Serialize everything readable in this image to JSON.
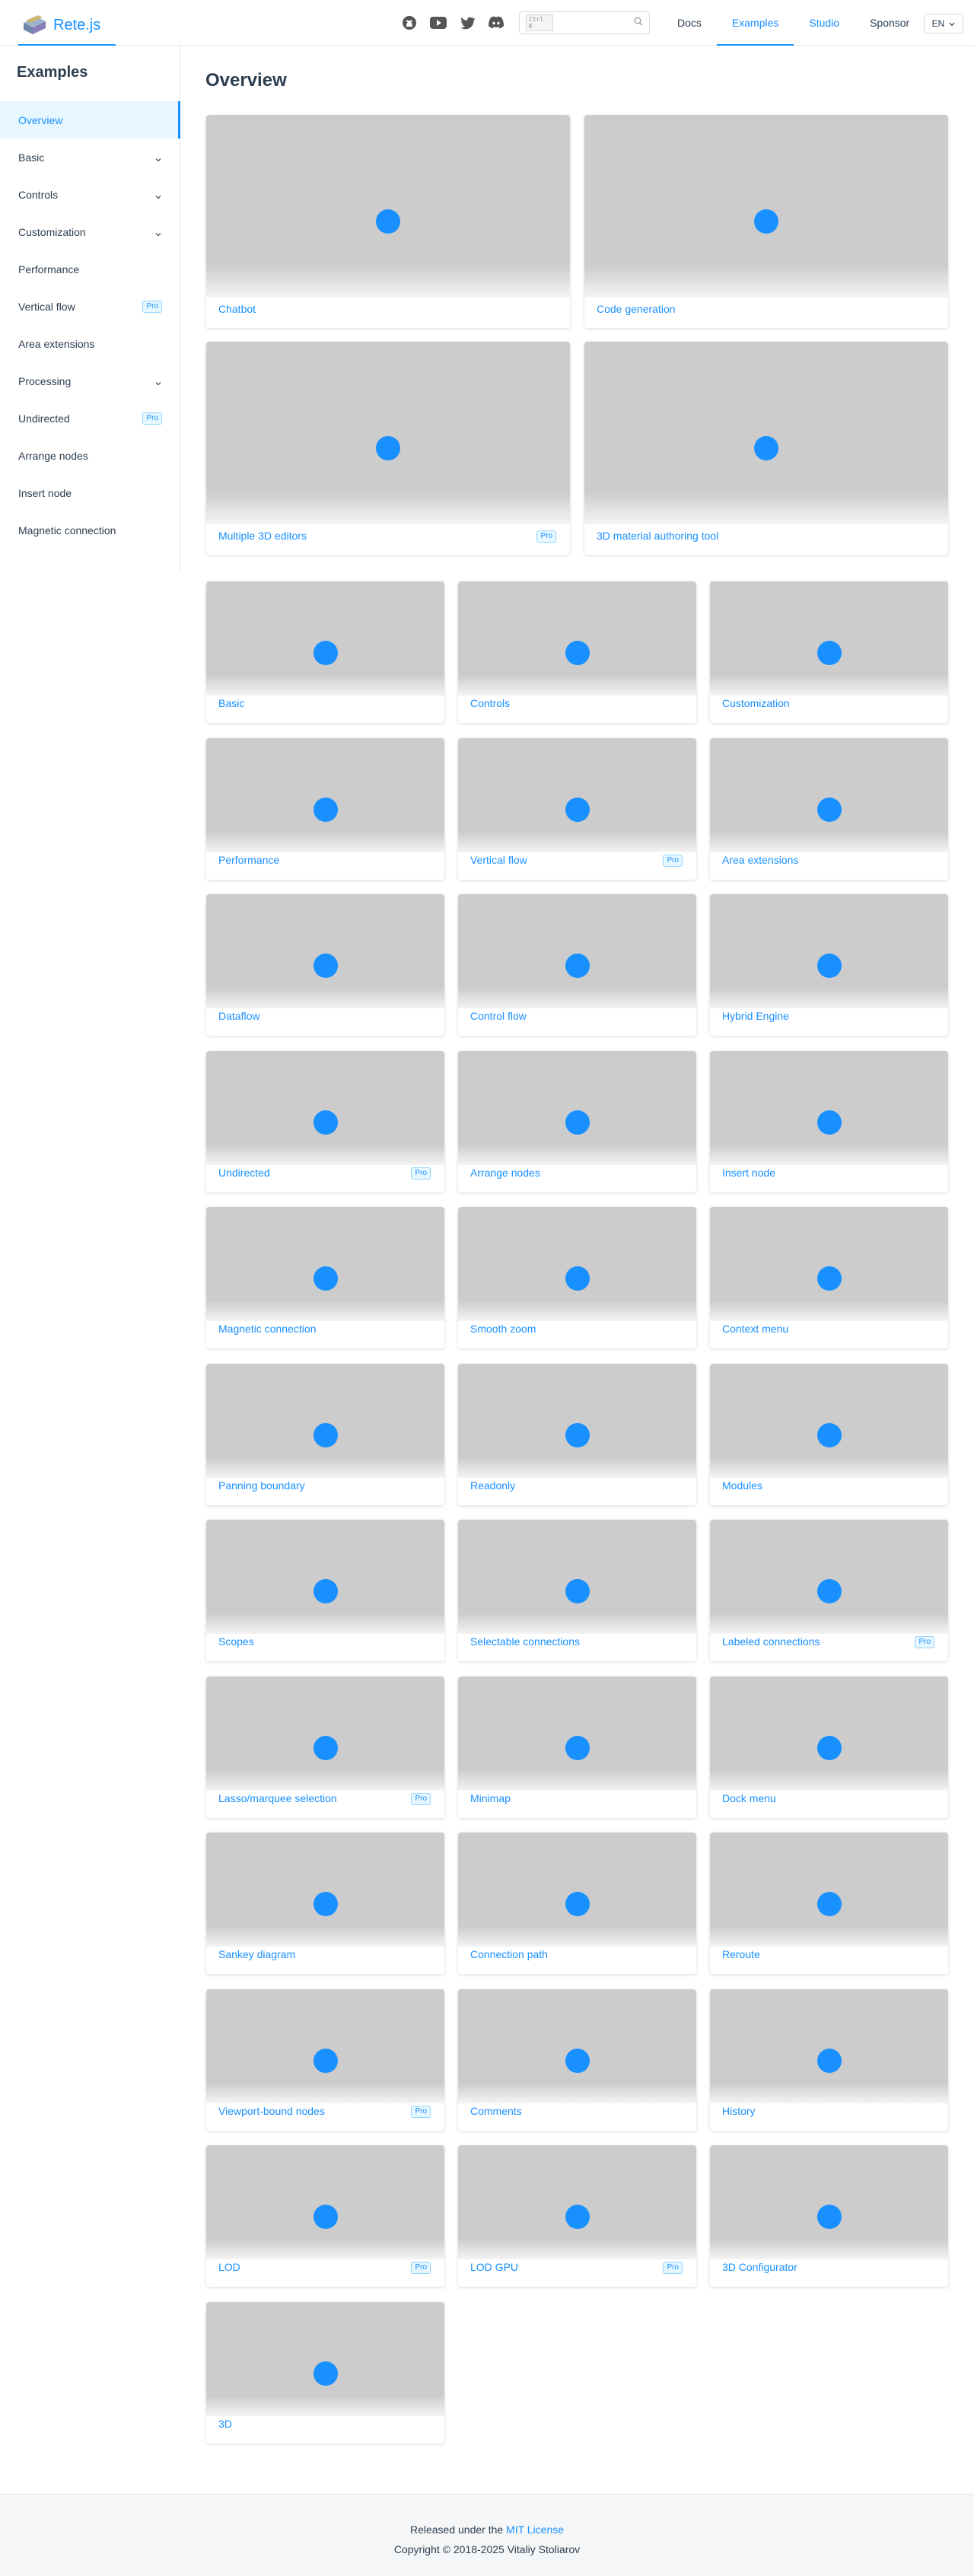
{
  "header": {
    "logo_text": "Rete.js",
    "social": [
      "github-icon",
      "youtube-icon",
      "twitter-icon",
      "discord-icon"
    ],
    "search": {
      "shortcut": "Ctrl K",
      "placeholder": ""
    },
    "nav": [
      {
        "label": "Docs",
        "state": "default"
      },
      {
        "label": "Examples",
        "state": "active"
      },
      {
        "label": "Studio",
        "state": "link"
      },
      {
        "label": "Sponsor",
        "state": "default"
      }
    ],
    "lang": "EN"
  },
  "sidebar": {
    "title": "Examples",
    "items": [
      {
        "label": "Overview",
        "active": true,
        "expandable": false,
        "pro": false
      },
      {
        "label": "Basic",
        "active": false,
        "expandable": true,
        "pro": false
      },
      {
        "label": "Controls",
        "active": false,
        "expandable": true,
        "pro": false
      },
      {
        "label": "Customization",
        "active": false,
        "expandable": true,
        "pro": false
      },
      {
        "label": "Performance",
        "active": false,
        "expandable": false,
        "pro": false
      },
      {
        "label": "Vertical flow",
        "active": false,
        "expandable": false,
        "pro": true
      },
      {
        "label": "Area extensions",
        "active": false,
        "expandable": false,
        "pro": false
      },
      {
        "label": "Processing",
        "active": false,
        "expandable": true,
        "pro": false
      },
      {
        "label": "Undirected",
        "active": false,
        "expandable": false,
        "pro": true
      },
      {
        "label": "Arrange nodes",
        "active": false,
        "expandable": false,
        "pro": false
      },
      {
        "label": "Insert node",
        "active": false,
        "expandable": false,
        "pro": false
      },
      {
        "label": "Magnetic connection",
        "active": false,
        "expandable": false,
        "pro": false
      }
    ]
  },
  "main": {
    "title": "Overview",
    "pro_label": "Pro",
    "featured": [
      {
        "title": "Chatbot",
        "pro": false
      },
      {
        "title": "Code generation",
        "pro": false
      },
      {
        "title": "Multiple 3D editors",
        "pro": true
      },
      {
        "title": "3D material authoring tool",
        "pro": false
      }
    ],
    "examples": [
      {
        "title": "Basic",
        "pro": false
      },
      {
        "title": "Controls",
        "pro": false
      },
      {
        "title": "Customization",
        "pro": false
      },
      {
        "title": "Performance",
        "pro": false
      },
      {
        "title": "Vertical flow",
        "pro": true
      },
      {
        "title": "Area extensions",
        "pro": false
      },
      {
        "title": "Dataflow",
        "pro": false
      },
      {
        "title": "Control flow",
        "pro": false
      },
      {
        "title": "Hybrid Engine",
        "pro": false
      },
      {
        "title": "Undirected",
        "pro": true
      },
      {
        "title": "Arrange nodes",
        "pro": false
      },
      {
        "title": "Insert node",
        "pro": false
      },
      {
        "title": "Magnetic connection",
        "pro": false
      },
      {
        "title": "Smooth zoom",
        "pro": false
      },
      {
        "title": "Context menu",
        "pro": false
      },
      {
        "title": "Panning boundary",
        "pro": false
      },
      {
        "title": "Readonly",
        "pro": false
      },
      {
        "title": "Modules",
        "pro": false
      },
      {
        "title": "Scopes",
        "pro": false
      },
      {
        "title": "Selectable connections",
        "pro": false
      },
      {
        "title": "Labeled connections",
        "pro": true
      },
      {
        "title": "Lasso/marquee selection",
        "pro": true
      },
      {
        "title": "Minimap",
        "pro": false
      },
      {
        "title": "Dock menu",
        "pro": false
      },
      {
        "title": "Sankey diagram",
        "pro": false
      },
      {
        "title": "Connection path",
        "pro": false
      },
      {
        "title": "Reroute",
        "pro": false
      },
      {
        "title": "Viewport-bound nodes",
        "pro": true
      },
      {
        "title": "Comments",
        "pro": false
      },
      {
        "title": "History",
        "pro": false
      },
      {
        "title": "LOD",
        "pro": true
      },
      {
        "title": "LOD GPU",
        "pro": true
      },
      {
        "title": "3D Configurator",
        "pro": false
      },
      {
        "title": "3D",
        "pro": false
      }
    ]
  },
  "footer": {
    "released_prefix": "Released under the ",
    "license": "MIT License",
    "copyright": "Copyright © 2018-2025 Vitaliy Stoliarov"
  },
  "colors": {
    "accent": "#1890ff",
    "thumb": "#cccccc",
    "text": "#2c3e50"
  }
}
